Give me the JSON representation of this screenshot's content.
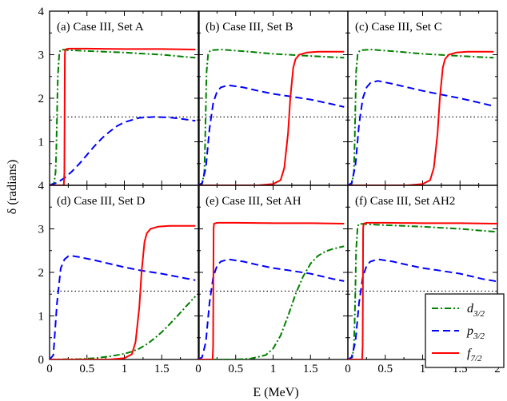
{
  "figure": {
    "ylabel": "δ (radians)",
    "xlabel": "E (MeV)"
  },
  "legend": [
    {
      "name": "d",
      "sub": "3/2",
      "color": "#008000",
      "dash": "dashdot",
      "series_key": "d32"
    },
    {
      "name": "p",
      "sub": "3/2",
      "color": "#0000ff",
      "dash": "dash",
      "series_key": "p32"
    },
    {
      "name": "f",
      "sub": "7/2",
      "color": "#ff0000",
      "dash": "solid",
      "series_key": "f72"
    }
  ],
  "chart_data": [
    {
      "type": "line",
      "panel": "(a)",
      "title": "(a) Case III, Set A",
      "xlim": [
        0,
        2
      ],
      "ylim": [
        0,
        4
      ],
      "reference_line": 1.5708,
      "series": [
        {
          "key": "d32",
          "x": [
            0,
            0.06,
            0.08,
            0.09,
            0.1,
            0.11,
            0.13,
            0.15,
            0.3,
            1.0,
            1.5,
            1.95
          ],
          "y": [
            0,
            0.05,
            0.3,
            0.8,
            1.6,
            2.5,
            3.05,
            3.12,
            3.1,
            3.05,
            3.0,
            2.93
          ]
        },
        {
          "key": "p32",
          "x": [
            0,
            0.1,
            0.2,
            0.3,
            0.4,
            0.5,
            0.6,
            0.7,
            0.8,
            0.9,
            1.0,
            1.2,
            1.4,
            1.6,
            1.8,
            1.95
          ],
          "y": [
            0,
            0.06,
            0.17,
            0.32,
            0.5,
            0.7,
            0.9,
            1.08,
            1.23,
            1.36,
            1.45,
            1.55,
            1.57,
            1.56,
            1.52,
            1.48
          ]
        },
        {
          "key": "f72",
          "x": [
            0,
            0.19,
            0.198,
            0.204,
            0.21,
            0.25,
            0.5,
            1.0,
            1.5,
            1.95
          ],
          "y": [
            0,
            0,
            0.3,
            3.0,
            3.12,
            3.14,
            3.14,
            3.13,
            3.13,
            3.12
          ]
        }
      ]
    },
    {
      "type": "line",
      "panel": "(b)",
      "title": "(b) Case III, Set B",
      "xlim": [
        0,
        2
      ],
      "ylim": [
        0,
        4
      ],
      "reference_line": 1.5708,
      "series": [
        {
          "key": "d32",
          "x": [
            0,
            0.05,
            0.08,
            0.09,
            0.1,
            0.11,
            0.13,
            0.16,
            0.3,
            0.6,
            1.0,
            1.5,
            1.95
          ],
          "y": [
            0,
            0.03,
            0.3,
            0.9,
            1.8,
            2.6,
            3.0,
            3.1,
            3.12,
            3.08,
            3.02,
            2.97,
            2.93
          ]
        },
        {
          "key": "p32",
          "x": [
            0,
            0.05,
            0.1,
            0.15,
            0.2,
            0.25,
            0.3,
            0.4,
            0.6,
            0.8,
            1.0,
            1.2,
            1.5,
            1.8,
            1.95
          ],
          "y": [
            0,
            0.05,
            0.4,
            1.3,
            1.9,
            2.15,
            2.25,
            2.3,
            2.25,
            2.17,
            2.1,
            2.05,
            1.97,
            1.86,
            1.8
          ]
        },
        {
          "key": "f72",
          "x": [
            0,
            0.8,
            1.0,
            1.1,
            1.15,
            1.2,
            1.23,
            1.27,
            1.3,
            1.35,
            1.45,
            1.6,
            1.8,
            1.95
          ],
          "y": [
            0,
            0,
            0.03,
            0.12,
            0.4,
            1.2,
            2.0,
            2.7,
            2.9,
            3.0,
            3.05,
            3.07,
            3.07,
            3.07
          ]
        }
      ]
    },
    {
      "type": "line",
      "panel": "(c)",
      "title": "(c) Case III, Set C",
      "xlim": [
        0,
        2
      ],
      "ylim": [
        0,
        4
      ],
      "reference_line": 1.5708,
      "series": [
        {
          "key": "d32",
          "x": [
            0,
            0.05,
            0.08,
            0.09,
            0.1,
            0.11,
            0.13,
            0.16,
            0.3,
            0.6,
            1.0,
            1.5,
            1.95
          ],
          "y": [
            0,
            0.03,
            0.3,
            0.9,
            1.8,
            2.6,
            3.0,
            3.1,
            3.12,
            3.08,
            3.02,
            2.97,
            2.93
          ]
        },
        {
          "key": "p32",
          "x": [
            0,
            0.05,
            0.1,
            0.15,
            0.2,
            0.25,
            0.3,
            0.4,
            0.6,
            0.8,
            1.0,
            1.2,
            1.5,
            1.8,
            1.95
          ],
          "y": [
            0,
            0.05,
            0.45,
            1.4,
            2.0,
            2.25,
            2.35,
            2.4,
            2.33,
            2.25,
            2.17,
            2.1,
            2.0,
            1.88,
            1.82
          ]
        },
        {
          "key": "f72",
          "x": [
            0,
            0.8,
            1.0,
            1.1,
            1.15,
            1.2,
            1.23,
            1.27,
            1.3,
            1.35,
            1.45,
            1.6,
            1.8,
            1.95
          ],
          "y": [
            0,
            0,
            0.03,
            0.12,
            0.4,
            1.2,
            2.0,
            2.7,
            2.9,
            3.0,
            3.05,
            3.07,
            3.07,
            3.07
          ]
        }
      ]
    },
    {
      "type": "line",
      "panel": "(d)",
      "title": "(d) Case III, Set D",
      "xlim": [
        0,
        2
      ],
      "ylim": [
        0,
        4
      ],
      "reference_line": 1.5708,
      "series": [
        {
          "key": "d32",
          "x": [
            0,
            0.4,
            0.6,
            0.8,
            1.0,
            1.1,
            1.2,
            1.3,
            1.4,
            1.5,
            1.6,
            1.7,
            1.8,
            1.9,
            1.95
          ],
          "y": [
            0,
            0.01,
            0.03,
            0.07,
            0.13,
            0.18,
            0.25,
            0.35,
            0.48,
            0.63,
            0.8,
            0.98,
            1.17,
            1.36,
            1.45
          ]
        },
        {
          "key": "p32",
          "x": [
            0,
            0.05,
            0.1,
            0.15,
            0.2,
            0.25,
            0.3,
            0.4,
            0.6,
            0.8,
            1.0,
            1.2,
            1.5,
            1.8,
            1.95
          ],
          "y": [
            0,
            0.1,
            1.3,
            2.1,
            2.3,
            2.37,
            2.38,
            2.35,
            2.28,
            2.2,
            2.12,
            2.05,
            1.97,
            1.87,
            1.82
          ]
        },
        {
          "key": "f72",
          "x": [
            0,
            0.8,
            1.0,
            1.1,
            1.15,
            1.2,
            1.23,
            1.27,
            1.3,
            1.35,
            1.45,
            1.6,
            1.8,
            1.95
          ],
          "y": [
            0,
            0,
            0.03,
            0.12,
            0.4,
            1.2,
            2.0,
            2.7,
            2.9,
            3.0,
            3.05,
            3.07,
            3.07,
            3.07
          ]
        }
      ]
    },
    {
      "type": "line",
      "panel": "(e)",
      "title": "(e) Case III, Set AH",
      "xlim": [
        0,
        2
      ],
      "ylim": [
        0,
        4
      ],
      "reference_line": 1.5708,
      "series": [
        {
          "key": "d32",
          "x": [
            0,
            0.5,
            0.7,
            0.9,
            1.0,
            1.1,
            1.2,
            1.3,
            1.4,
            1.5,
            1.6,
            1.7,
            1.8,
            1.9,
            1.95
          ],
          "y": [
            0,
            0,
            0.02,
            0.1,
            0.25,
            0.55,
            1.0,
            1.5,
            1.9,
            2.2,
            2.38,
            2.48,
            2.54,
            2.58,
            2.6
          ]
        },
        {
          "key": "p32",
          "x": [
            0,
            0.05,
            0.1,
            0.15,
            0.2,
            0.25,
            0.3,
            0.4,
            0.6,
            0.8,
            1.0,
            1.2,
            1.5,
            1.8,
            1.95
          ],
          "y": [
            0,
            0.05,
            0.4,
            1.3,
            1.9,
            2.15,
            2.25,
            2.3,
            2.25,
            2.17,
            2.1,
            2.05,
            1.97,
            1.85,
            1.8
          ]
        },
        {
          "key": "f72",
          "x": [
            0,
            0.19,
            0.198,
            0.204,
            0.21,
            0.25,
            0.5,
            1.0,
            1.5,
            1.95
          ],
          "y": [
            0,
            0,
            0.3,
            3.0,
            3.12,
            3.14,
            3.14,
            3.13,
            3.13,
            3.12
          ]
        }
      ]
    },
    {
      "type": "line",
      "panel": "(f)",
      "title": "(f) Case III, Set AH2",
      "xlim": [
        0,
        2
      ],
      "ylim": [
        0,
        4
      ],
      "reference_line": 1.5708,
      "xticks": [
        0,
        0.5,
        1,
        1.5,
        2
      ],
      "series": [
        {
          "key": "d32",
          "x": [
            0,
            0.06,
            0.08,
            0.09,
            0.1,
            0.11,
            0.13,
            0.15,
            0.3,
            1.0,
            1.5,
            2.0
          ],
          "y": [
            0,
            0.05,
            0.3,
            0.8,
            1.6,
            2.5,
            3.05,
            3.12,
            3.1,
            3.05,
            3.0,
            2.93
          ]
        },
        {
          "key": "p32",
          "x": [
            0,
            0.05,
            0.1,
            0.15,
            0.2,
            0.25,
            0.3,
            0.4,
            0.6,
            0.8,
            1.0,
            1.2,
            1.5,
            1.8,
            2.0
          ],
          "y": [
            0,
            0.05,
            0.4,
            1.3,
            1.9,
            2.15,
            2.25,
            2.3,
            2.25,
            2.17,
            2.1,
            2.05,
            1.97,
            1.85,
            1.79
          ]
        },
        {
          "key": "f72",
          "x": [
            0,
            0.19,
            0.198,
            0.204,
            0.21,
            0.25,
            0.5,
            1.0,
            1.5,
            2.0
          ],
          "y": [
            0,
            0,
            0.3,
            3.0,
            3.12,
            3.14,
            3.14,
            3.13,
            3.13,
            3.12
          ]
        }
      ]
    }
  ],
  "axes": {
    "yticks": [
      "0",
      "1",
      "2",
      "3",
      "4"
    ],
    "xticks_short": [
      "0",
      "0.5",
      "1",
      "1.5"
    ],
    "xticks_full": [
      "0",
      "0.5",
      "1",
      "1.5",
      "2"
    ]
  }
}
